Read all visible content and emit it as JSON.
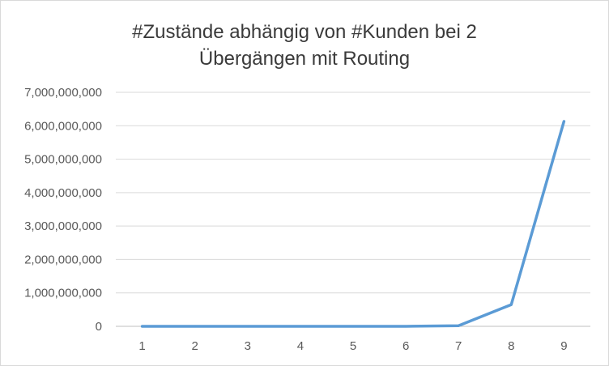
{
  "chart_data": {
    "type": "line",
    "title_lines": [
      "#Zustände abhängig von #Kunden bei 2",
      "Übergängen mit Routing"
    ],
    "categories": [
      "1",
      "2",
      "3",
      "4",
      "5",
      "6",
      "7",
      "8",
      "9"
    ],
    "series": [
      {
        "values": [
          0,
          0,
          0,
          0,
          0,
          100000,
          20000000,
          650000000,
          6130000000
        ],
        "color": "#5b9bd5"
      }
    ],
    "ylim": [
      0,
      7000000000
    ],
    "y_ticks": [
      0,
      1000000000,
      2000000000,
      3000000000,
      4000000000,
      5000000000,
      6000000000,
      7000000000
    ],
    "y_tick_labels": [
      "0",
      "1,000,000,000",
      "2,000,000,000",
      "3,000,000,000",
      "4,000,000,000",
      "5,000,000,000",
      "6,000,000,000",
      "7,000,000,000"
    ],
    "grid": true,
    "legend": "none"
  }
}
